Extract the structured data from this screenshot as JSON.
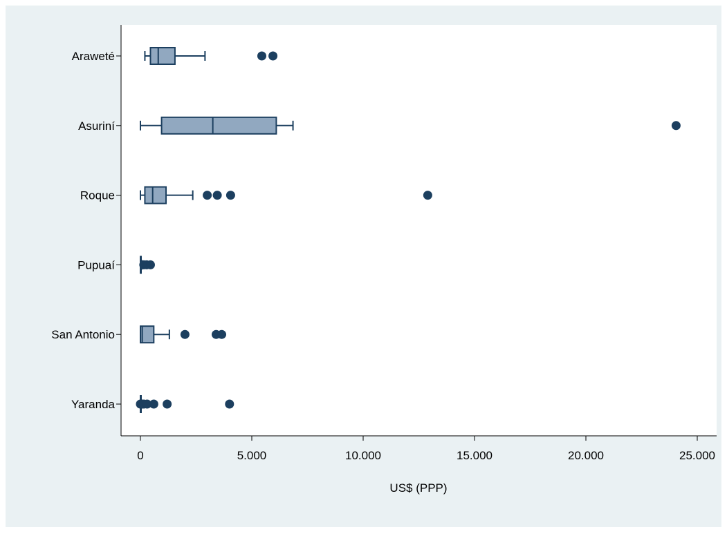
{
  "chart_data": {
    "type": "box",
    "orientation": "horizontal",
    "title": "",
    "xlabel": "US$ (PPP)",
    "ylabel": "",
    "xlim": [
      -800,
      25900
    ],
    "xticks": [
      0,
      5000,
      10000,
      15000,
      20000,
      25000
    ],
    "xtick_labels": [
      "0",
      "5.000",
      "10.000",
      "15.000",
      "20.000",
      "25.000"
    ],
    "grid": false,
    "legend": "none",
    "colors": {
      "outer_background": "#eaf1f3",
      "plot_background": "#ffffff",
      "box_fill": "#91a8c0",
      "box_stroke": "#1c3f5f",
      "outlier": "#1c3f5f"
    },
    "categories": [
      "Araweté",
      "Asuriní",
      "Roque",
      "Pupuaí",
      "San Antonio",
      "Yaranda"
    ],
    "boxes": [
      {
        "name": "Araweté",
        "whisker_low": 200,
        "q1": 450,
        "median": 800,
        "q3": 1550,
        "whisker_high": 2900,
        "outliers": [
          5450,
          5950
        ]
      },
      {
        "name": "Asuriní",
        "whisker_low": 0,
        "q1": 950,
        "median": 3250,
        "q3": 6100,
        "whisker_high": 6850,
        "outliers": [
          24050
        ]
      },
      {
        "name": "Roque",
        "whisker_low": 0,
        "q1": 200,
        "median": 550,
        "q3": 1150,
        "whisker_high": 2350,
        "outliers": [
          3000,
          3450,
          4050,
          12900
        ]
      },
      {
        "name": "Pupuaí",
        "whisker_low": 0,
        "q1": 0,
        "median": 0,
        "q3": 30,
        "whisker_high": 60,
        "outliers": [
          150,
          280,
          450
        ]
      },
      {
        "name": "San Antonio",
        "whisker_low": 0,
        "q1": 0,
        "median": 80,
        "q3": 600,
        "whisker_high": 1300,
        "outliers": [
          2000,
          3400,
          3650
        ]
      },
      {
        "name": "Yaranda",
        "whisker_low": 0,
        "q1": 0,
        "median": 0,
        "q3": 20,
        "whisker_high": 50,
        "outliers": [
          0,
          150,
          300,
          600,
          1200,
          4000
        ]
      }
    ]
  }
}
